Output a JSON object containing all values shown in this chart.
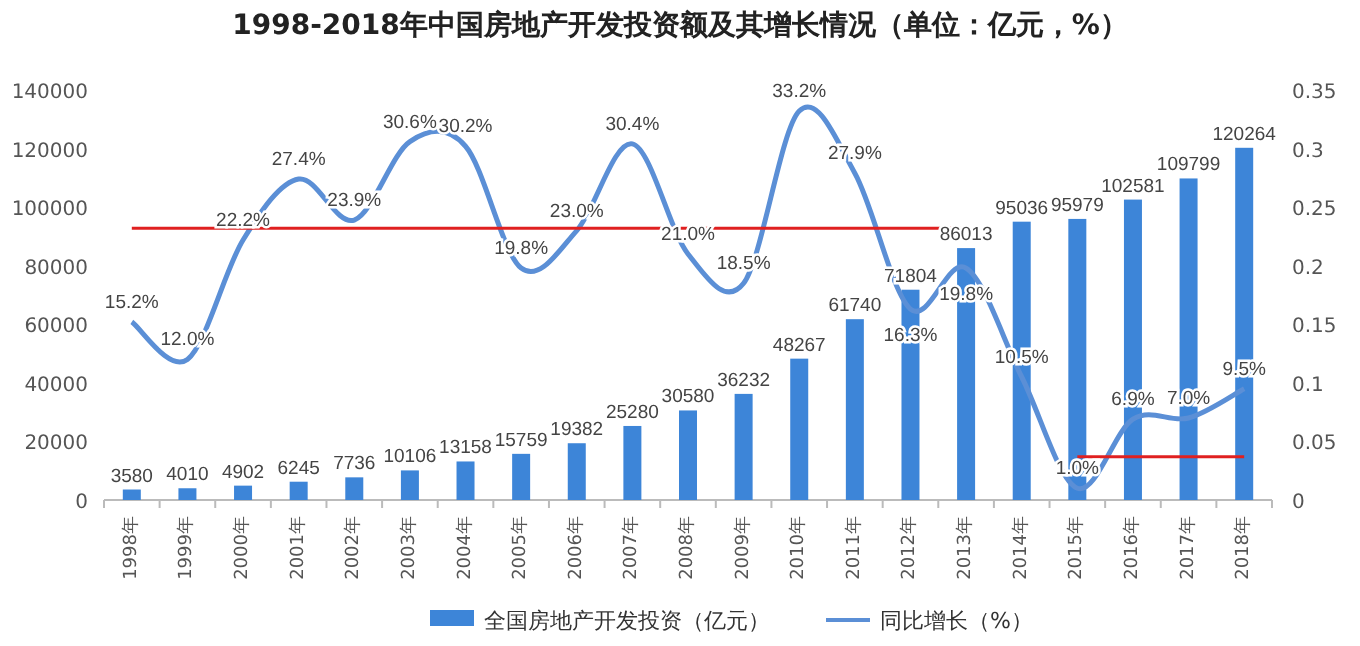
{
  "chart_data": {
    "type": "bar",
    "title": "1998-2018年中国房地产开发投资额及其增长情况（单位：亿元，%）",
    "categories": [
      "1998年",
      "1999年",
      "2000年",
      "2001年",
      "2002年",
      "2003年",
      "2004年",
      "2005年",
      "2006年",
      "2007年",
      "2008年",
      "2009年",
      "2010年",
      "2011年",
      "2012年",
      "2013年",
      "2014年",
      "2015年",
      "2016年",
      "2017年",
      "2018年"
    ],
    "series": [
      {
        "name": "全国房地产开发投资（亿元）",
        "color": "#3d85d8",
        "values": [
          3580,
          4010,
          4902,
          6245,
          7736,
          10106,
          13158,
          15759,
          19382,
          25280,
          30580,
          36232,
          48267,
          61740,
          71804,
          86013,
          95036,
          95979,
          102581,
          109799,
          120264
        ],
        "value_labels": [
          "3580",
          "4010",
          "4902",
          "6245",
          "7736",
          "10106",
          "13158",
          "15759",
          "19382",
          "25280",
          "30580",
          "36232",
          "48267",
          "61740",
          "71804",
          "86013",
          "95036",
          "95979",
          "102581",
          "109799",
          "120264"
        ]
      },
      {
        "name": "同比增长（%）",
        "type": "line",
        "axis": "y2",
        "color": "#5b8fd6",
        "values": [
          0.152,
          0.12,
          0.222,
          0.274,
          0.239,
          0.306,
          0.302,
          0.198,
          0.23,
          0.304,
          0.21,
          0.185,
          0.332,
          0.279,
          0.163,
          0.198,
          0.105,
          0.01,
          0.069,
          0.07,
          0.095
        ],
        "value_labels": [
          "15.2%",
          "12.0%",
          "22.2%",
          "27.4%",
          "23.9%",
          "30.6%",
          "30.2%",
          "19.8%",
          "23.0%",
          "30.4%",
          "21.0%",
          "18.5%",
          "33.2%",
          "27.9%",
          "16.3%",
          "19.8%",
          "10.5%",
          "1.0%",
          "6.9%",
          "7.0%",
          "9.5%"
        ]
      },
      {
        "type": "line",
        "axis": "y2",
        "color": "#e02020",
        "x": [
          "1998年",
          "2013年"
        ],
        "values": [
          0.232,
          0.232
        ]
      },
      {
        "type": "line",
        "axis": "y2",
        "color": "#e02020",
        "x": [
          "2015年",
          "2018年"
        ],
        "values": [
          0.037,
          0.037
        ]
      }
    ],
    "ylim": [
      0,
      140000
    ],
    "yticks": [
      0,
      20000,
      40000,
      60000,
      80000,
      100000,
      120000,
      140000
    ],
    "y2lim": [
      0,
      0.35
    ],
    "y2ticks": [
      0,
      0.05,
      0.1,
      0.15,
      0.2,
      0.25,
      0.3,
      0.35
    ],
    "grid": false,
    "legend": "bottom"
  }
}
